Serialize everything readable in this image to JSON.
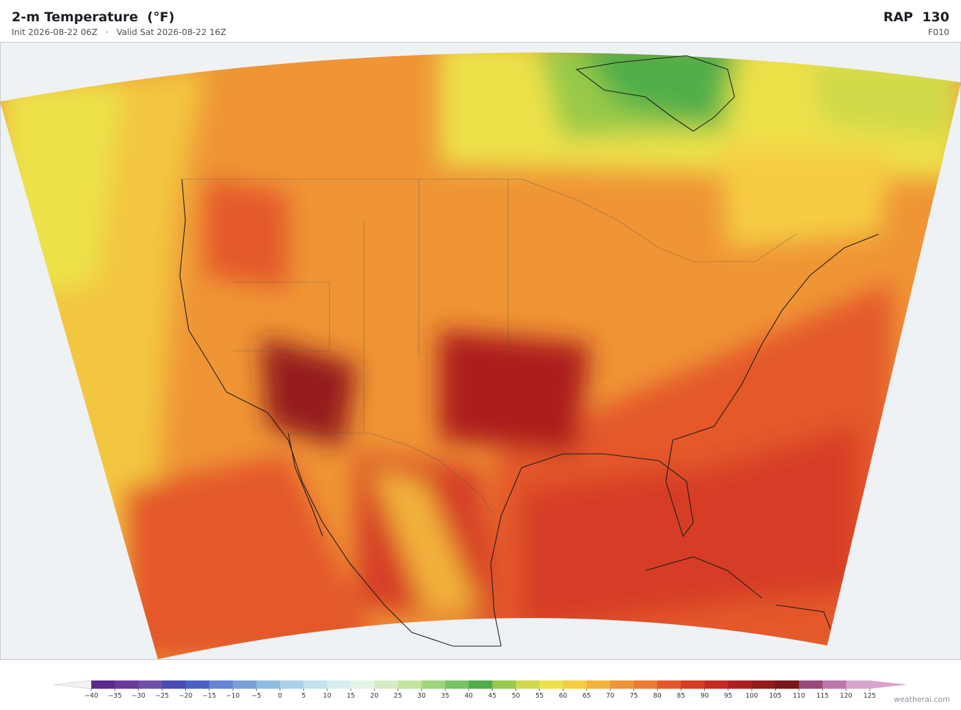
{
  "header": {
    "title": "2-m Temperature  (°F)",
    "subtitle": "Init 2026-08-22 06Z   ·   Valid Sat 2026-08-22 16Z",
    "model": "RAP  130",
    "forecast_hour": "F010"
  },
  "colorbar": {
    "ticks": [
      {
        "value": -40,
        "label": "−40"
      },
      {
        "value": -35,
        "label": "−35"
      },
      {
        "value": -30,
        "label": "−30"
      },
      {
        "value": -25,
        "label": "−25"
      },
      {
        "value": -20,
        "label": "−20"
      },
      {
        "value": -15,
        "label": "−15"
      },
      {
        "value": -10,
        "label": "−10"
      },
      {
        "value": -5,
        "label": "−5"
      },
      0,
      5,
      10,
      15,
      20,
      25,
      30,
      35,
      40,
      45,
      50,
      55,
      60,
      65,
      70,
      75,
      80,
      85,
      90,
      95,
      100,
      105,
      110,
      115,
      120,
      125
    ],
    "colors": [
      "#5b2a8e",
      "#6a3a9b",
      "#7050a8",
      "#4a4ab8",
      "#4a62c8",
      "#6585d2",
      "#7aa2d8",
      "#8fbde0",
      "#a9d2e8",
      "#c3e2ef",
      "#d9eef0",
      "#e6f4e6",
      "#d6ecc6",
      "#c2e4a0",
      "#9ed67d",
      "#78c462",
      "#4fae49",
      "#98c94a",
      "#cfd94a",
      "#ede14a",
      "#f5cd43",
      "#f2b23a",
      "#ef9535",
      "#ec7a30",
      "#e4582a",
      "#d63d25",
      "#c42a22",
      "#ad1f1f",
      "#941a1c",
      "#7a161a",
      "#9a4a7a",
      "#bd78ab",
      "#d5a5cc"
    ],
    "under_color": "#f2f2f2",
    "over_color": "#d9a3cf"
  },
  "watermark": "weatherai.com"
}
